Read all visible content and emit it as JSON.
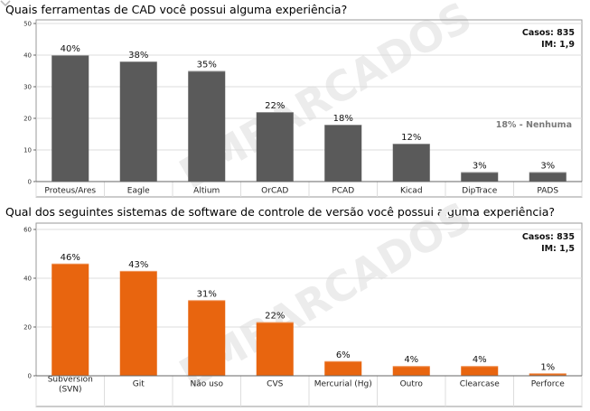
{
  "chart_data": [
    {
      "type": "bar",
      "title": "Quais ferramentas de CAD você possui alguma experiência?",
      "categories": [
        "Proteus/Ares",
        "Eagle",
        "Altium",
        "OrCAD",
        "PCAD",
        "Kicad",
        "DipTrace",
        "PADS"
      ],
      "values": [
        40,
        38,
        35,
        22,
        18,
        12,
        3,
        3
      ],
      "data_labels": [
        "40%",
        "38%",
        "35%",
        "22%",
        "18%",
        "12%",
        "3%",
        "3%"
      ],
      "ylim": [
        0,
        50
      ],
      "yticks": [
        0,
        10,
        20,
        30,
        40,
        50
      ],
      "bar_color": "#5a5a5a",
      "stats": [
        "Casos: 835",
        "IM: 1,9"
      ],
      "annotation": "18% - Nenhuma"
    },
    {
      "type": "bar",
      "title": "Qual dos seguintes sistemas de software de controle de versão você possui alguma experiência?",
      "categories": [
        "Subversion\n(SVN)",
        "Git",
        "Não uso",
        "CVS",
        "Mercurial (Hg)",
        "Outro",
        "Clearcase",
        "Perforce"
      ],
      "values": [
        46,
        43,
        31,
        22,
        6,
        4,
        4,
        1
      ],
      "data_labels": [
        "46%",
        "43%",
        "31%",
        "22%",
        "6%",
        "4%",
        "4%",
        "1%"
      ],
      "ylim": [
        0,
        60
      ],
      "yticks": [
        0,
        20,
        40,
        60
      ],
      "bar_color": "#e8650f",
      "stats": [
        "Casos: 835",
        "IM: 1,5"
      ]
    }
  ],
  "watermark": "EMBARCADOS",
  "colors": {
    "grid": "#dddddd",
    "frame": "#999999",
    "annotation": "#7a7a7a"
  }
}
